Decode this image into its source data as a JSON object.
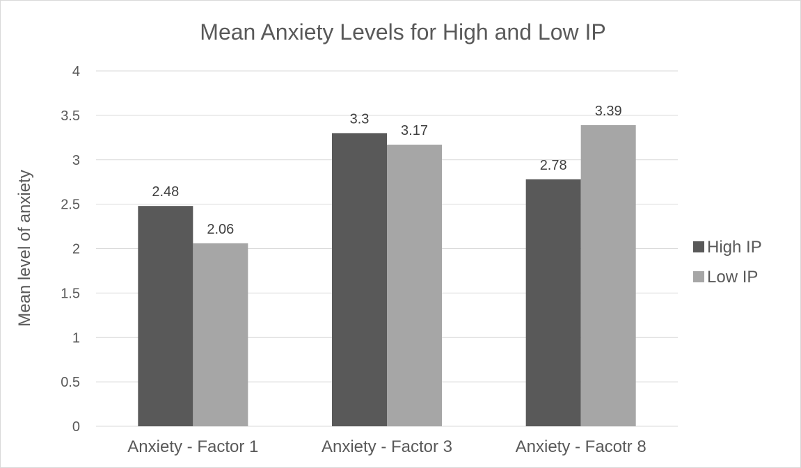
{
  "chart_data": {
    "type": "bar",
    "title": "Mean Anxiety Levels for High and Low IP",
    "xlabel": "",
    "ylabel": "Mean level of anxiety",
    "categories": [
      "Anxiety - Factor 1",
      "Anxiety - Factor 3",
      "Anxiety - Facotr 8"
    ],
    "series": [
      {
        "name": "High IP",
        "values": [
          2.48,
          3.3,
          2.78
        ],
        "color": "#595959"
      },
      {
        "name": "Low IP",
        "values": [
          2.06,
          3.17,
          3.39
        ],
        "color": "#a6a6a6"
      }
    ],
    "ylim": [
      0,
      4
    ],
    "yticks": [
      "0",
      "0.5",
      "1",
      "1.5",
      "2",
      "2.5",
      "3",
      "3.5",
      "4"
    ],
    "data_labels": [
      [
        "2.48",
        "3.3",
        "2.78"
      ],
      [
        "2.06",
        "3.17",
        "3.39"
      ]
    ],
    "grid": true,
    "gridline_color": "#d9d9d9",
    "legend_position": "right"
  }
}
